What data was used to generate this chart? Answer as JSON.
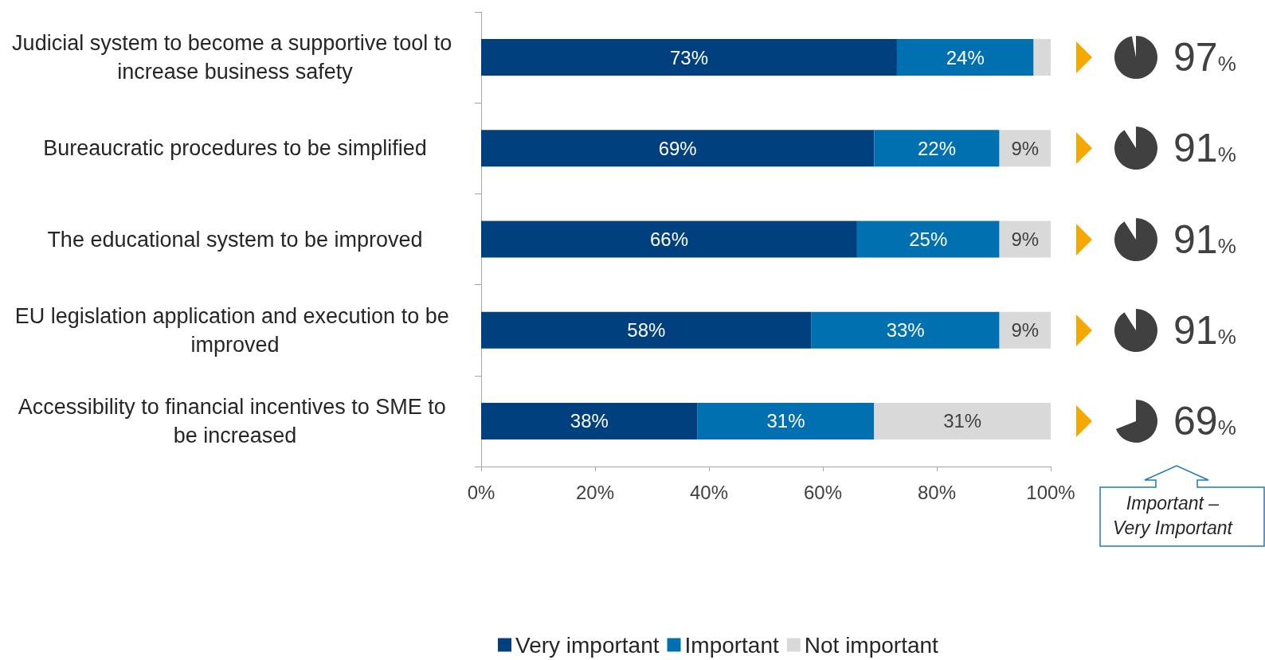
{
  "chart_data": {
    "type": "bar",
    "orientation": "horizontal",
    "stacked": true,
    "categories": [
      "Judicial system to become a supportive tool to increase business safety",
      "Bureaucratic procedures to be simplified",
      "The educational system to be improved",
      "EU legislation application and execution to be improved",
      "Accessibility to financial incentives to SME to be increased"
    ],
    "series": [
      {
        "name": "Very important",
        "color": "#00407f",
        "values": [
          73,
          69,
          66,
          58,
          38
        ],
        "value_labels": [
          "73%",
          "69%",
          "66%",
          "58%",
          "38%"
        ]
      },
      {
        "name": "Important",
        "color": "#0070b0",
        "values": [
          24,
          22,
          25,
          33,
          31
        ],
        "value_labels": [
          "24%",
          "22%",
          "25%",
          "33%",
          "31%"
        ]
      },
      {
        "name": "Not important",
        "color": "#d9d9d9",
        "values": [
          3,
          9,
          9,
          9,
          31
        ],
        "value_labels": [
          null,
          "9%",
          "9%",
          "9%",
          "31%"
        ]
      }
    ],
    "xlim": [
      0,
      100
    ],
    "xticks": [
      {
        "value": 0,
        "label": "0%"
      },
      {
        "value": 20,
        "label": "20%"
      },
      {
        "value": 40,
        "label": "40%"
      },
      {
        "value": 60,
        "label": "60%"
      },
      {
        "value": 80,
        "label": "80%"
      },
      {
        "value": 100,
        "label": "100%"
      }
    ],
    "annotations": [
      "97%",
      "91%",
      "91%",
      "91%",
      "69%",
      "Important – Very Important"
    ],
    "legend": "bottom",
    "grid": false
  }
}
